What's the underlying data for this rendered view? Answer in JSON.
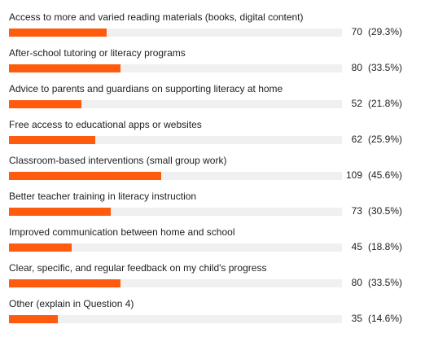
{
  "chart_data": {
    "type": "bar",
    "orientation": "horizontal",
    "bar_color": "#ff5b0f",
    "track_color": "#f0f0f0",
    "categories": [
      "Access to more and varied reading materials (books, digital content)",
      "After-school tutoring or literacy programs",
      "Advice to parents and guardians on supporting literacy at home",
      "Free access to educational apps or websites",
      "Classroom-based interventions (small group work)",
      "Better teacher training in literacy instruction",
      "Improved communication between home and school",
      "Clear, specific, and regular feedback on my child's progress",
      "Other (explain in Question 4)"
    ],
    "values": [
      70,
      80,
      52,
      62,
      109,
      73,
      45,
      80,
      35
    ],
    "percent_labels": [
      "(29.3%)",
      "(33.5%)",
      "(21.8%)",
      "(25.9%)",
      "(45.6%)",
      "(30.5%)",
      "(18.8%)",
      "(33.5%)",
      "(14.6%)"
    ],
    "percents": [
      29.3,
      33.5,
      21.8,
      25.9,
      45.6,
      30.5,
      18.8,
      33.5,
      14.6
    ]
  }
}
